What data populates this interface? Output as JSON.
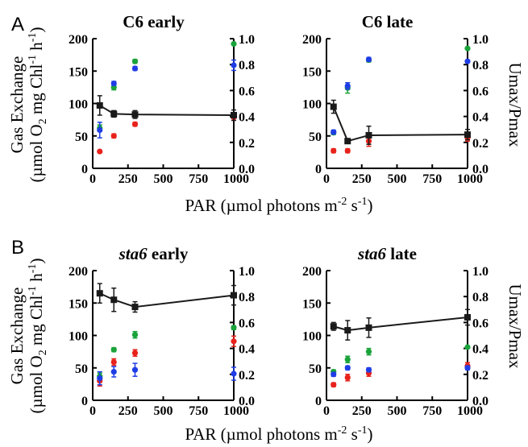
{
  "panel_letters": [
    "A",
    "B"
  ],
  "left_axis_label": {
    "line1": "Gas Exchange",
    "line2_pre": "(µmol O",
    "line2_sub": "2",
    "line2_mid": " mg Chl",
    "line2_sup": "-1",
    "line2_mid2": " h",
    "line2_sup2": "-1",
    "line2_post": ")"
  },
  "right_axis_label": "Umax/Pmax",
  "x_axis_label": {
    "pre": "PAR (µmol photons m",
    "sup1": "-2",
    "mid": " s",
    "sup2": "-1",
    "post": ")"
  },
  "colors": {
    "black": "#1a1a1a",
    "red": "#e8221b",
    "green": "#1aa33a",
    "blue": "#1f3de6"
  },
  "chart_data": [
    {
      "type": "scatter",
      "panel": "A",
      "title": "C6 early",
      "title_italic": false,
      "xlim": [
        0,
        1000
      ],
      "ylim": [
        0,
        200
      ],
      "y2lim": [
        0,
        1.0
      ],
      "xticks": [
        0,
        250,
        500,
        750,
        1000
      ],
      "yticks": [
        0,
        50,
        100,
        150,
        200
      ],
      "y2ticks": [
        "0.0",
        "0.2",
        "0.4",
        "0.6",
        "0.8",
        "1.0"
      ],
      "series": [
        {
          "color": "black",
          "style": "line-square",
          "x": [
            50,
            150,
            300,
            1000
          ],
          "y": [
            97,
            84,
            83,
            82
          ],
          "err": [
            15,
            5,
            6,
            8
          ]
        },
        {
          "color": "red",
          "x": [
            50,
            150,
            300,
            1000
          ],
          "y": [
            26,
            50,
            68,
            79
          ],
          "err": [
            0,
            3,
            3,
            5
          ]
        },
        {
          "color": "green",
          "x": [
            50,
            150,
            300,
            1000
          ],
          "y": [
            62,
            125,
            165,
            192
          ],
          "err": [
            5,
            4,
            3,
            0
          ]
        },
        {
          "color": "blue",
          "x": [
            50,
            150,
            300,
            1000
          ],
          "y": [
            59,
            131,
            154,
            159
          ],
          "err": [
            12,
            3,
            3,
            8
          ]
        }
      ]
    },
    {
      "type": "scatter",
      "panel": "A",
      "title": "C6 late",
      "title_italic": false,
      "xlim": [
        0,
        1000
      ],
      "ylim": [
        0,
        200
      ],
      "y2lim": [
        0,
        1.0
      ],
      "xticks": [
        0,
        250,
        500,
        750,
        1000
      ],
      "yticks": [
        0,
        50,
        100,
        150,
        200
      ],
      "y2ticks": [
        "0.0",
        "0.2",
        "0.4",
        "0.6",
        "0.8",
        "1.0"
      ],
      "series": [
        {
          "color": "black",
          "style": "line-square",
          "x": [
            50,
            150,
            300,
            1000
          ],
          "y": [
            95,
            42,
            51,
            52
          ],
          "err": [
            10,
            3,
            14,
            8
          ]
        },
        {
          "color": "red",
          "x": [
            50,
            150,
            300,
            1000
          ],
          "y": [
            27,
            27,
            42,
            47
          ],
          "err": [
            3,
            3,
            8,
            5
          ]
        },
        {
          "color": "green",
          "x": [
            50,
            150,
            300,
            1000
          ],
          "y": [
            55,
            124,
            167,
            185
          ],
          "err": [
            3,
            8,
            3,
            0
          ]
        },
        {
          "color": "blue",
          "x": [
            50,
            150,
            300,
            1000
          ],
          "y": [
            56,
            127,
            168,
            165
          ],
          "err": [
            3,
            5,
            3,
            0
          ]
        }
      ]
    },
    {
      "type": "scatter",
      "panel": "B",
      "title": "sta6 early",
      "title_italic_part": "sta6",
      "title_rest": " early",
      "xlim": [
        0,
        1000
      ],
      "ylim": [
        0,
        200
      ],
      "y2lim": [
        0,
        1.0
      ],
      "xticks": [
        0,
        250,
        500,
        750,
        1000
      ],
      "yticks": [
        0,
        50,
        100,
        150,
        200
      ],
      "y2ticks": [
        "0.0",
        "0.2",
        "0.4",
        "0.6",
        "0.8",
        "1.0"
      ],
      "series": [
        {
          "color": "black",
          "style": "line-square",
          "x": [
            50,
            150,
            300,
            1000
          ],
          "y": [
            165,
            155,
            144,
            162
          ],
          "err": [
            15,
            18,
            8,
            15
          ]
        },
        {
          "color": "red",
          "x": [
            50,
            150,
            300,
            1000
          ],
          "y": [
            30,
            59,
            73,
            91
          ],
          "err": [
            8,
            5,
            5,
            8
          ]
        },
        {
          "color": "green",
          "x": [
            50,
            150,
            300,
            1000
          ],
          "y": [
            37,
            78,
            101,
            112
          ],
          "err": [
            5,
            3,
            5,
            3
          ]
        },
        {
          "color": "blue",
          "x": [
            50,
            150,
            300,
            1000
          ],
          "y": [
            34,
            44,
            47,
            41
          ],
          "err": [
            10,
            8,
            10,
            10
          ]
        }
      ]
    },
    {
      "type": "scatter",
      "panel": "B",
      "title": "sta6 late",
      "title_italic_part": "sta6",
      "title_rest": " late",
      "xlim": [
        0,
        1000
      ],
      "ylim": [
        0,
        200
      ],
      "y2lim": [
        0,
        1.0
      ],
      "xticks": [
        0,
        250,
        500,
        750,
        1000
      ],
      "yticks": [
        0,
        50,
        100,
        150,
        200
      ],
      "y2ticks": [
        "0.0",
        "0.2",
        "0.4",
        "0.6",
        "0.8",
        "1.0"
      ],
      "series": [
        {
          "color": "black",
          "style": "line-square",
          "x": [
            50,
            150,
            300,
            1000
          ],
          "y": [
            114,
            108,
            112,
            128
          ],
          "err": [
            6,
            15,
            15,
            12
          ]
        },
        {
          "color": "red",
          "x": [
            50,
            150,
            300,
            1000
          ],
          "y": [
            24,
            35,
            42,
            53
          ],
          "err": [
            3,
            5,
            5,
            5
          ]
        },
        {
          "color": "green",
          "x": [
            50,
            150,
            300,
            1000
          ],
          "y": [
            44,
            63,
            75,
            82
          ],
          "err": [
            3,
            5,
            5,
            0
          ]
        },
        {
          "color": "blue",
          "x": [
            50,
            150,
            300,
            1000
          ],
          "y": [
            40,
            50,
            47,
            50
          ],
          "err": [
            3,
            3,
            3,
            3
          ]
        }
      ]
    }
  ]
}
